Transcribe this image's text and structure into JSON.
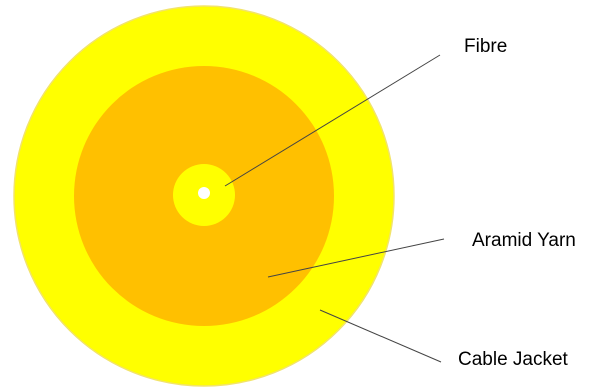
{
  "diagram": {
    "labels": {
      "fibre": "Fibre",
      "aramid_yarn": "Aramid Yarn",
      "cable_jacket": "Cable Jacket"
    },
    "colors": {
      "cable_jacket": "#ffff00",
      "cable_jacket_edge": "#f2e46a",
      "aramid_yarn": "#ffc000",
      "buffer": "#ffff00",
      "fibre_core": "#ffffff",
      "leader_line": "#444444"
    }
  }
}
